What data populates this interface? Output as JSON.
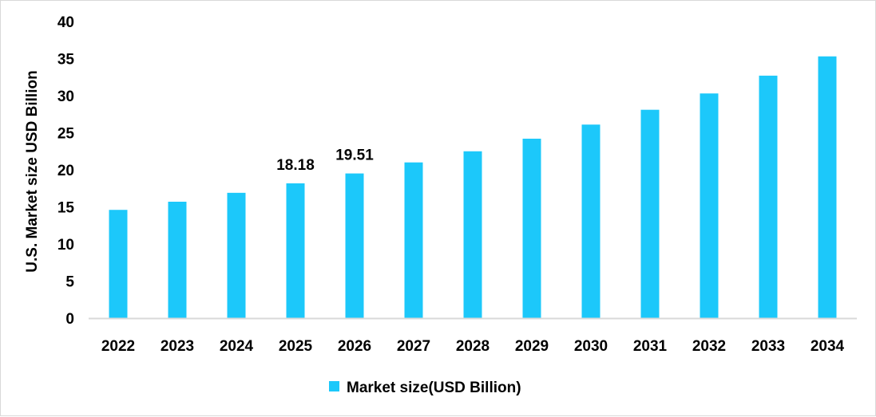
{
  "chart_data": {
    "type": "bar",
    "title": "",
    "xlabel": "",
    "ylabel": "U.S. Market size USD Billion",
    "ylim": [
      0,
      40
    ],
    "yticks": [
      0,
      5,
      10,
      15,
      20,
      25,
      30,
      35,
      40
    ],
    "grid": false,
    "legend_position": "bottom",
    "categories": [
      "2022",
      "2023",
      "2024",
      "2025",
      "2026",
      "2027",
      "2028",
      "2029",
      "2030",
      "2031",
      "2032",
      "2033",
      "2034"
    ],
    "series": [
      {
        "name": "Market size(USD Billion)",
        "color": "#1CC8FA",
        "values": [
          14.6,
          15.7,
          16.9,
          18.18,
          19.51,
          21.0,
          22.5,
          24.2,
          26.1,
          28.1,
          30.3,
          32.7,
          35.3
        ]
      }
    ],
    "data_labels": [
      {
        "category": "2025",
        "text": "18.18"
      },
      {
        "category": "2026",
        "text": "19.51"
      }
    ]
  }
}
